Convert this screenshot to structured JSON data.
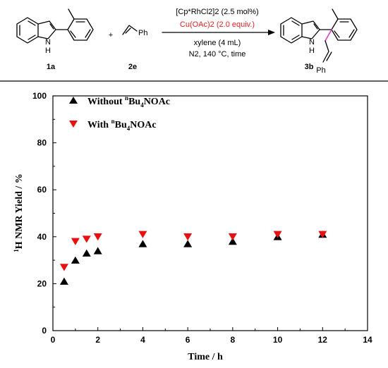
{
  "scheme": {
    "catalyst": "[Cp*RhCl2]2 (2.5 mol%)",
    "oxidant": "Cu(OAc)2 (2.0 equiv.)",
    "solvent": "xylene (4 mL)",
    "conditions": "N2, 140 °C, time",
    "plus": "+",
    "compounds": [
      {
        "label": "1a"
      },
      {
        "label": "2e"
      },
      {
        "label": "3b"
      }
    ],
    "atoms": {
      "nh_n": "N",
      "nh_h": "H",
      "ph": "Ph"
    },
    "colors": {
      "oxidant_text": "#e02020",
      "new_bond": "#e040c8"
    }
  },
  "chart_data": {
    "type": "scatter",
    "xlabel": "Time / h",
    "ylabel": "1H NMR Yield / %",
    "xlim": [
      0,
      14
    ],
    "ylim": [
      0,
      100
    ],
    "xticks": [
      0,
      2,
      4,
      6,
      8,
      10,
      12,
      14
    ],
    "yticks": [
      0,
      20,
      40,
      60,
      80,
      100
    ],
    "grid": false,
    "legend_position": "top-left",
    "series": [
      {
        "name": "Without nBu4NOAc",
        "marker": "triangle-up",
        "color": "#000000",
        "x": [
          0.5,
          1,
          1.5,
          2,
          4,
          6,
          8,
          10,
          12
        ],
        "y": [
          21,
          30,
          33,
          34,
          37,
          37,
          38,
          40,
          41
        ]
      },
      {
        "name": "With nBu4NOAc",
        "marker": "triangle-down",
        "color": "#e81010",
        "x": [
          0.5,
          1,
          1.5,
          2,
          4,
          6,
          8,
          10,
          12
        ],
        "y": [
          27,
          38,
          39,
          40,
          41,
          40,
          40,
          41,
          41
        ]
      }
    ]
  }
}
